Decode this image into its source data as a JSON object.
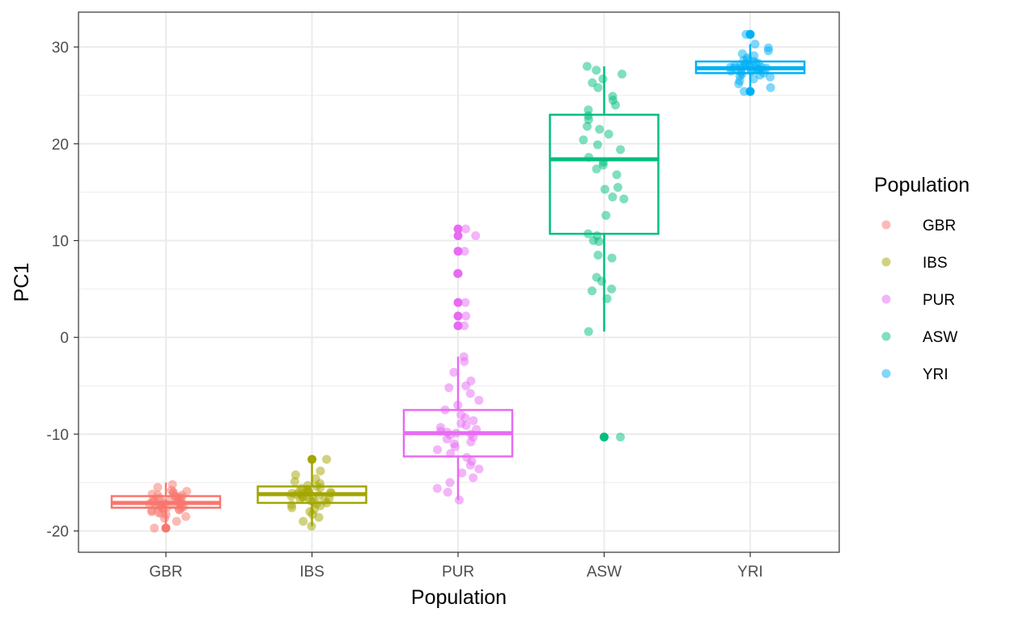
{
  "chart_data": {
    "type": "box",
    "xlabel": "Population",
    "ylabel": "PC1",
    "ylim": [
      -22.2,
      33.6
    ],
    "yticks": [
      -20,
      -10,
      0,
      10,
      20,
      30
    ],
    "categories": [
      "GBR",
      "IBS",
      "PUR",
      "ASW",
      "YRI"
    ],
    "grid": true,
    "legend": {
      "title": "Population",
      "placement": "right",
      "entries": [
        "GBR",
        "IBS",
        "PUR",
        "ASW",
        "YRI"
      ]
    },
    "colors": {
      "GBR": "#F8766D",
      "IBS": "#A3A500",
      "PUR": "#E76BF3",
      "ASW": "#00BF7D",
      "YRI": "#00B0F6"
    },
    "boxes": [
      {
        "category": "GBR",
        "min": -19.7,
        "q1": -17.6,
        "median": -17.1,
        "q3": -16.4,
        "max": -15.0,
        "outliers": [
          -19.7
        ]
      },
      {
        "category": "IBS",
        "min": -19.5,
        "q1": -17.1,
        "median": -16.2,
        "q3": -15.4,
        "max": -12.6,
        "outliers": [
          -12.6
        ]
      },
      {
        "category": "PUR",
        "min": -16.8,
        "q1": -12.3,
        "median": -9.9,
        "q3": -7.5,
        "max": -2.0,
        "outliers": [
          1.2,
          2.2,
          3.6,
          6.6,
          8.9,
          10.5,
          11.2
        ]
      },
      {
        "category": "ASW",
        "min": 0.6,
        "q1": 10.7,
        "median": 18.4,
        "q3": 23.0,
        "max": 28.0,
        "outliers": [
          -10.3
        ]
      },
      {
        "category": "YRI",
        "min": 25.4,
        "q1": 27.3,
        "median": 27.8,
        "q3": 28.5,
        "max": 30.3,
        "outliers": [
          25.4,
          31.3
        ]
      }
    ],
    "points": [
      {
        "category": "GBR",
        "y": [
          -15.2,
          -15.5,
          -15.8,
          -15.9,
          -16.0,
          -16.1,
          -16.2,
          -16.3,
          -16.4,
          -16.5,
          -16.5,
          -16.6,
          -16.7,
          -16.8,
          -16.8,
          -16.9,
          -17.0,
          -17.0,
          -17.1,
          -17.1,
          -17.2,
          -17.2,
          -17.3,
          -17.3,
          -17.4,
          -17.4,
          -17.5,
          -17.6,
          -17.6,
          -17.7,
          -17.8,
          -17.9,
          -18.0,
          -18.1,
          -18.2,
          -18.3,
          -18.5,
          -18.7,
          -19.0,
          -19.7,
          -17.0,
          -16.6,
          -17.8,
          -16.3,
          -17.5
        ]
      },
      {
        "category": "IBS",
        "y": [
          -12.6,
          -13.8,
          -14.2,
          -14.6,
          -14.9,
          -15.1,
          -15.3,
          -15.5,
          -15.6,
          -15.7,
          -15.8,
          -15.9,
          -16.0,
          -16.0,
          -16.1,
          -16.2,
          -16.2,
          -16.3,
          -16.4,
          -16.5,
          -16.5,
          -16.6,
          -16.7,
          -16.8,
          -16.9,
          -17.0,
          -17.1,
          -17.2,
          -17.4,
          -17.6,
          -17.8,
          -18.0,
          -18.3,
          -18.6,
          -19.0,
          -19.5,
          -16.1,
          -15.9,
          -16.4,
          -16.7,
          -15.4,
          -17.3
        ]
      },
      {
        "category": "PUR",
        "y": [
          -2.0,
          -2.5,
          -3.6,
          -4.5,
          -5.0,
          -5.2,
          -5.8,
          -6.5,
          -7.0,
          -7.5,
          -8.0,
          -8.3,
          -8.6,
          -8.9,
          -9.1,
          -9.3,
          -9.5,
          -9.7,
          -9.8,
          -9.9,
          -10.0,
          -10.1,
          -10.3,
          -10.5,
          -10.8,
          -11.0,
          -11.3,
          -11.6,
          -12.0,
          -12.4,
          -12.8,
          -13.2,
          -13.6,
          -14.0,
          -14.5,
          -15.0,
          -15.6,
          -16.0,
          -16.8,
          1.2,
          2.2,
          3.6,
          6.6,
          8.9,
          10.5,
          11.2
        ]
      },
      {
        "category": "ASW",
        "y": [
          0.6,
          4.0,
          4.8,
          5.0,
          5.8,
          6.2,
          8.2,
          8.5,
          9.9,
          10.0,
          10.5,
          10.7,
          12.6,
          14.3,
          14.5,
          15.3,
          15.5,
          16.8,
          17.4,
          17.8,
          18.1,
          18.6,
          19.4,
          19.9,
          20.4,
          21.0,
          21.5,
          21.8,
          22.5,
          22.9,
          23.5,
          24.0,
          24.5,
          24.9,
          25.8,
          26.3,
          26.7,
          27.2,
          27.6,
          28.0,
          -10.3
        ]
      },
      {
        "category": "YRI",
        "y": [
          25.4,
          25.8,
          26.2,
          26.5,
          26.7,
          26.9,
          27.0,
          27.1,
          27.2,
          27.3,
          27.4,
          27.5,
          27.6,
          27.6,
          27.7,
          27.7,
          27.8,
          27.8,
          27.9,
          27.9,
          28.0,
          28.0,
          28.1,
          28.2,
          28.3,
          28.4,
          28.5,
          28.6,
          28.7,
          28.9,
          29.1,
          29.3,
          29.6,
          29.9,
          30.3,
          31.3,
          27.8,
          28.1,
          27.5,
          28.2
        ]
      }
    ]
  }
}
